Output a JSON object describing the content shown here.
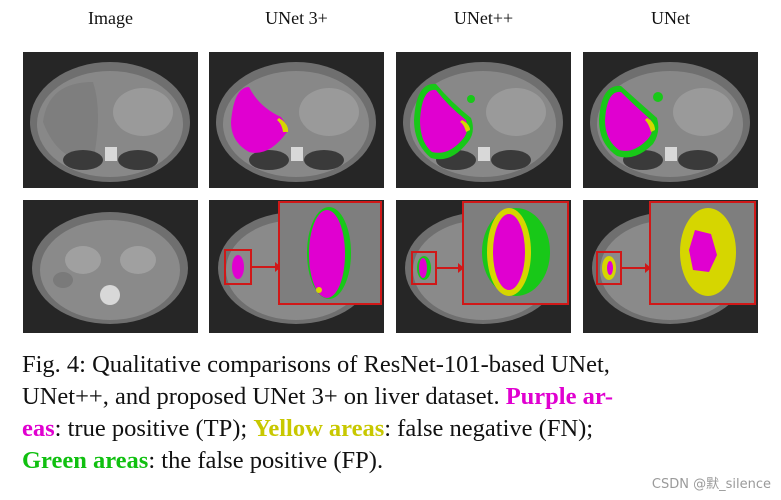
{
  "columns": [
    "Image",
    "UNet 3+",
    "UNet++",
    "UNet"
  ],
  "caption": {
    "line1": "Fig. 4: Qualitative comparisons of ResNet-101-based UNet,",
    "line2_a": "UNet++, and proposed UNet 3+ on liver dataset. ",
    "purple_label": "Purple ar-",
    "line3_purple": "eas",
    "line3_a": ": true positive (TP); ",
    "yellow_label": "Yellow areas",
    "line3_b": ": false negative (FN);",
    "green_label": "Green areas",
    "line4": ": the false positive (FP)."
  },
  "legend_colors": {
    "true_positive": "#e000d0",
    "false_negative": "#d6d600",
    "false_positive": "#18c818",
    "highlight_box": "#d01818"
  },
  "watermark": "CSDN @默_silence"
}
